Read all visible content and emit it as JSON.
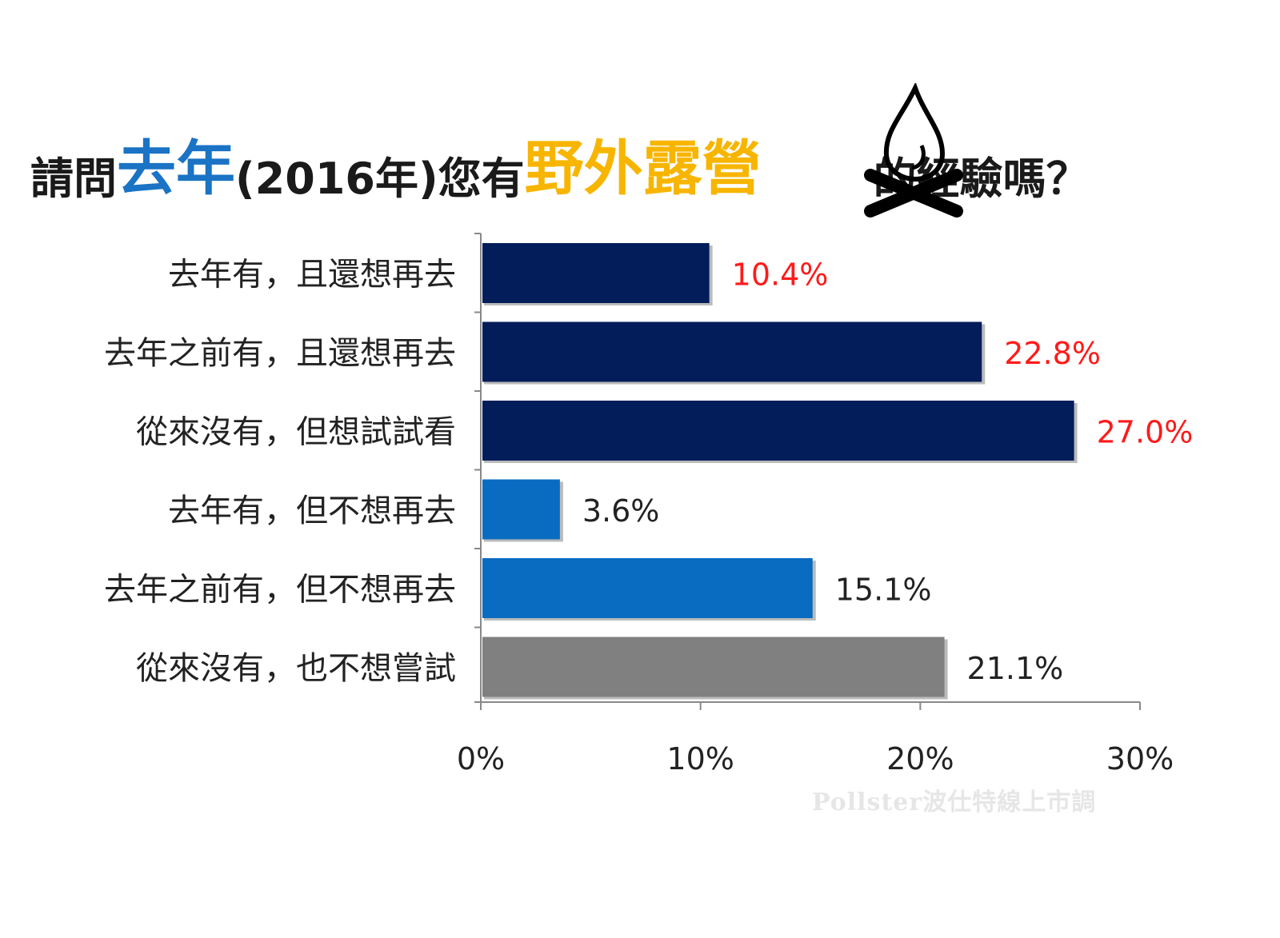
{
  "title": {
    "part1": "請問",
    "part2": "去年",
    "part3": "(2016年)您有",
    "part4": "野外露營",
    "part5": "的經驗嗎？",
    "icon": "campfire-icon"
  },
  "watermark": "Pollster波仕特線上市調",
  "chart_data": {
    "type": "bar",
    "orientation": "horizontal",
    "title": "請問去年(2016年)您有野外露營的經驗嗎？",
    "categories": [
      "去年有，且還想再去",
      "去年之前有，且還想再去",
      "從來沒有，但想試試看",
      "去年有，但不想再去",
      "去年之前有，但不想再去",
      "從來沒有，也不想嘗試"
    ],
    "values": [
      10.4,
      22.8,
      27.0,
      3.6,
      15.1,
      21.1
    ],
    "value_labels": [
      "10.4%",
      "22.8%",
      "27.0%",
      "3.6%",
      "15.1%",
      "21.1%"
    ],
    "bar_colors": [
      "#021d5a",
      "#021d5a",
      "#021d5a",
      "#0a6cc1",
      "#0a6cc1",
      "#808080"
    ],
    "label_colors": [
      "#ff1a1a",
      "#ff1a1a",
      "#ff1a1a",
      "#222222",
      "#222222",
      "#222222"
    ],
    "xlim": [
      0,
      30
    ],
    "xticks": [
      0,
      10,
      20,
      30
    ],
    "xtick_labels": [
      "0%",
      "10%",
      "20%",
      "30%"
    ],
    "xlabel": "",
    "ylabel": "",
    "grid": false,
    "legend": "none"
  }
}
